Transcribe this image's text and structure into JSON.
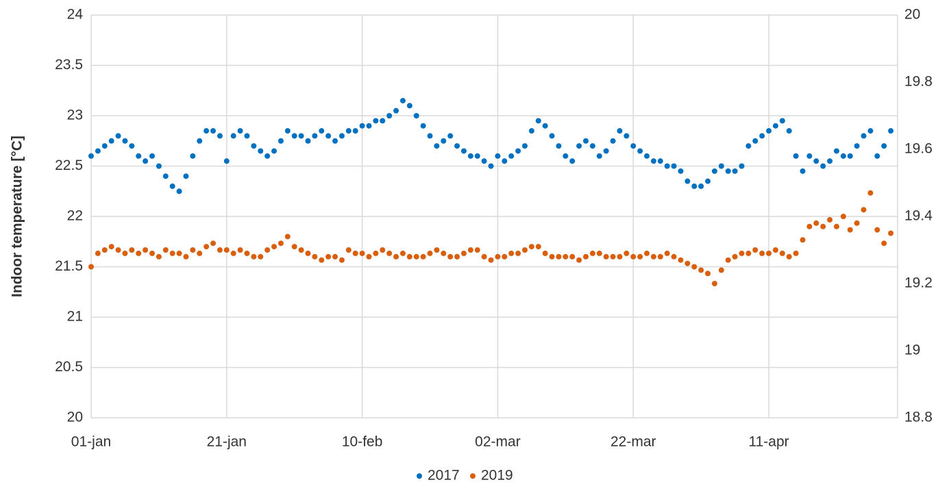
{
  "chart_data": {
    "type": "scatter",
    "y_label": "Indoor temperature [°C]",
    "x": [
      0,
      1,
      2,
      3,
      4,
      5,
      6,
      7,
      8,
      9,
      10,
      11,
      12,
      13,
      14,
      15,
      16,
      17,
      18,
      19,
      20,
      21,
      22,
      23,
      24,
      25,
      26,
      27,
      28,
      29,
      30,
      31,
      32,
      33,
      34,
      35,
      36,
      37,
      38,
      39,
      40,
      41,
      42,
      43,
      44,
      45,
      46,
      47,
      48,
      49,
      50,
      51,
      52,
      53,
      54,
      55,
      56,
      57,
      58,
      59,
      60,
      61,
      62,
      63,
      64,
      65,
      66,
      67,
      68,
      69,
      70,
      71,
      72,
      73,
      74,
      75,
      76,
      77,
      78,
      79,
      80,
      81,
      82,
      83,
      84,
      85,
      86,
      87,
      88,
      89,
      90,
      91,
      92,
      93,
      94,
      95,
      96,
      97,
      98,
      99,
      100,
      101,
      102,
      103,
      104,
      105,
      106,
      107,
      108,
      109,
      110,
      111,
      112,
      113,
      114,
      115,
      116,
      117,
      118
    ],
    "xlim": [
      0,
      119
    ],
    "xticks": [
      {
        "value": 0,
        "label": "01-jan"
      },
      {
        "value": 20,
        "label": "21-jan"
      },
      {
        "value": 40,
        "label": "10-feb"
      },
      {
        "value": 60,
        "label": "02-mar"
      },
      {
        "value": 80,
        "label": "22-mar"
      },
      {
        "value": 100,
        "label": "11-apr"
      }
    ],
    "ylim": [
      20,
      24
    ],
    "yticks": [
      20,
      20.5,
      21,
      21.5,
      22,
      22.5,
      23,
      23.5,
      24
    ],
    "y2lim": [
      18.8,
      20
    ],
    "y2ticks": [
      18.8,
      19,
      19.2,
      19.4,
      19.6,
      19.8,
      20
    ],
    "grid": true,
    "legend": "bottom",
    "series": [
      {
        "name": "2017",
        "color": "#0070c0",
        "values": [
          22.6,
          22.65,
          22.7,
          22.75,
          22.8,
          22.75,
          22.7,
          22.6,
          22.55,
          22.6,
          22.5,
          22.4,
          22.3,
          22.25,
          22.4,
          22.6,
          22.75,
          22.85,
          22.85,
          22.8,
          22.55,
          22.8,
          22.85,
          22.8,
          22.7,
          22.65,
          22.6,
          22.65,
          22.75,
          22.85,
          22.8,
          22.8,
          22.75,
          22.8,
          22.85,
          22.8,
          22.75,
          22.8,
          22.85,
          22.85,
          22.9,
          22.9,
          22.95,
          22.95,
          23.0,
          23.05,
          23.15,
          23.1,
          23.0,
          22.9,
          22.8,
          22.7,
          22.75,
          22.8,
          22.7,
          22.65,
          22.6,
          22.6,
          22.55,
          22.5,
          22.6,
          22.55,
          22.6,
          22.65,
          22.7,
          22.85,
          22.95,
          22.9,
          22.8,
          22.7,
          22.6,
          22.55,
          22.7,
          22.75,
          22.7,
          22.6,
          22.65,
          22.75,
          22.85,
          22.8,
          22.7,
          22.65,
          22.6,
          22.55,
          22.55,
          22.5,
          22.5,
          22.45,
          22.35,
          22.3,
          22.3,
          22.35,
          22.45,
          22.5,
          22.45,
          22.45,
          22.5,
          22.7,
          22.75,
          22.8,
          22.85,
          22.9,
          22.95,
          22.85,
          22.6,
          22.45,
          22.6,
          22.55,
          22.5,
          22.55,
          22.65,
          22.6,
          22.6,
          22.7,
          22.8,
          22.85,
          22.6,
          22.7,
          22.85
        ]
      },
      {
        "name": "2019",
        "color": "#d95f0e",
        "axis": "y2",
        "values": [
          19.25,
          19.29,
          19.3,
          19.31,
          19.3,
          19.29,
          19.3,
          19.29,
          19.3,
          19.29,
          19.28,
          19.3,
          19.29,
          19.29,
          19.28,
          19.3,
          19.29,
          19.31,
          19.32,
          19.3,
          19.3,
          19.29,
          19.3,
          19.29,
          19.28,
          19.28,
          19.3,
          19.31,
          19.32,
          19.34,
          19.31,
          19.3,
          19.29,
          19.28,
          19.27,
          19.28,
          19.28,
          19.27,
          19.3,
          19.29,
          19.29,
          19.28,
          19.29,
          19.3,
          19.29,
          19.28,
          19.29,
          19.28,
          19.28,
          19.28,
          19.29,
          19.3,
          19.29,
          19.28,
          19.28,
          19.29,
          19.3,
          19.3,
          19.28,
          19.27,
          19.28,
          19.28,
          19.29,
          19.29,
          19.3,
          19.31,
          19.31,
          19.29,
          19.28,
          19.28,
          19.28,
          19.28,
          19.27,
          19.28,
          19.29,
          19.29,
          19.28,
          19.28,
          19.28,
          19.29,
          19.28,
          19.28,
          19.29,
          19.28,
          19.28,
          19.29,
          19.28,
          19.27,
          19.26,
          19.25,
          19.24,
          19.23,
          19.2,
          19.24,
          19.27,
          19.28,
          19.29,
          19.29,
          19.3,
          19.29,
          19.29,
          19.3,
          19.29,
          19.28,
          19.29,
          19.33,
          19.37,
          19.38,
          19.37,
          19.39,
          19.37,
          19.4,
          19.36,
          19.38,
          19.42,
          19.47,
          19.36,
          19.32,
          19.35
        ]
      }
    ]
  }
}
